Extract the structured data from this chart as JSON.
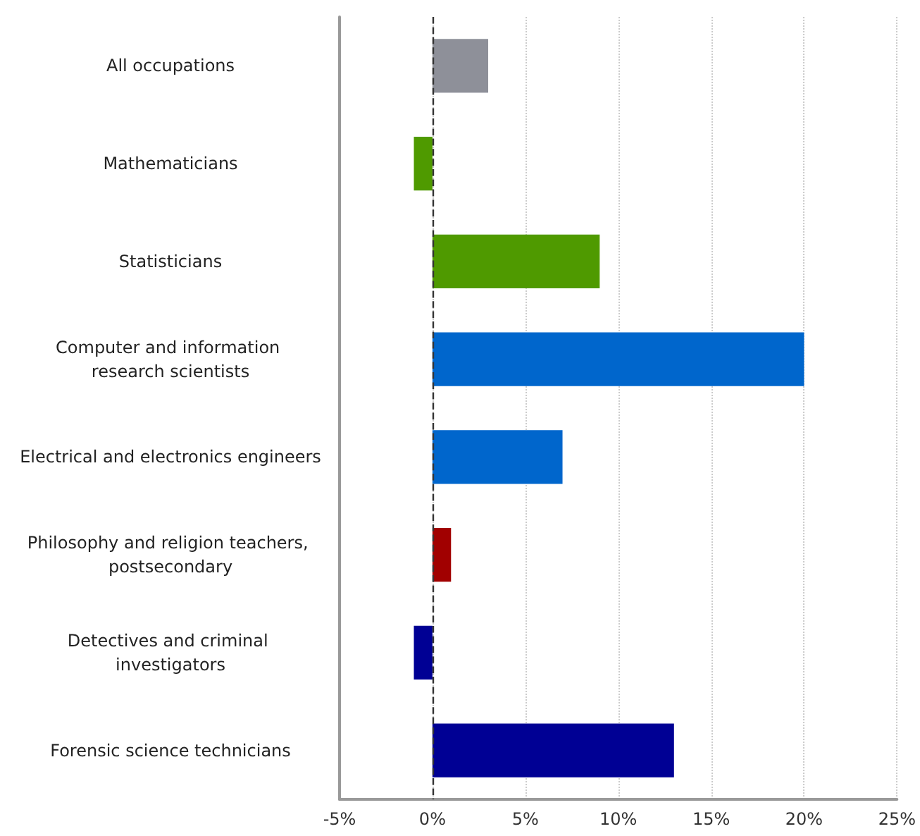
{
  "chart_data": {
    "type": "bar",
    "orientation": "horizontal",
    "categories": [
      "All occupations",
      "Mathematicians",
      "Statisticians",
      "Computer and information research scientists",
      "Electrical and electronics engineers",
      "Philosophy and religion teachers, postsecondary",
      "Detectives and criminal investigators",
      "Forensic science technicians"
    ],
    "values": [
      3,
      -1,
      9,
      20,
      7,
      1,
      -1,
      13
    ],
    "colors": [
      "#8e9099",
      "#4f9a00",
      "#4f9a00",
      "#0066cc",
      "#0066cc",
      "#a10000",
      "#000094",
      "#000094"
    ],
    "xlim": [
      -5,
      25
    ],
    "xticks": [
      {
        "value": -5,
        "label": "-5%"
      },
      {
        "value": 0,
        "label": "0%"
      },
      {
        "value": 5,
        "label": "5%"
      },
      {
        "value": 10,
        "label": "10%"
      },
      {
        "value": 15,
        "label": "15%"
      },
      {
        "value": 20,
        "label": "20%"
      },
      {
        "value": 25,
        "label": "25%"
      }
    ],
    "grid": "x",
    "ref_lines": [
      {
        "axis": "x",
        "value": 0,
        "color": "#333333",
        "line_style": "dashed"
      }
    ]
  }
}
